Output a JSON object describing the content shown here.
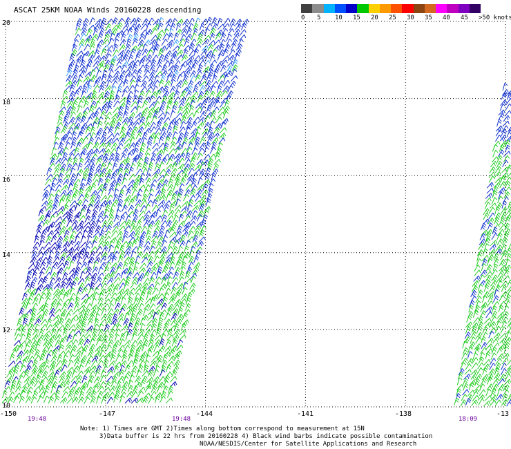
{
  "title": "ASCAT 25KM NOAA Winds 20160228 descending",
  "colorbar": {
    "colors": [
      "#404040",
      "#8c8c8c",
      "#00b3ff",
      "#0050ff",
      "#0000c8",
      "#00c800",
      "#ffd000",
      "#ff9900",
      "#ff5000",
      "#ff0000",
      "#8b4513",
      "#d2691e",
      "#ff00ff",
      "#c000c0",
      "#8000c0",
      "#330066"
    ],
    "labels": [
      "0",
      "5",
      "10",
      "15",
      "20",
      "25",
      "30",
      "35",
      "40",
      "45",
      ">50 knots"
    ]
  },
  "axes": {
    "lat_labels": [
      "20",
      "18",
      "16",
      "14",
      "12",
      "10"
    ],
    "lon_labels": [
      "-150",
      "-147",
      "-144",
      "-141",
      "-138",
      "-13"
    ]
  },
  "times": [
    "19:48",
    "19:48",
    "18:09"
  ],
  "notes": [
    "Note: 1) Times are GMT 2)Times along bottom correspond to measurement at 15N",
    "3)Data buffer is 22 hrs from 20160228 4) Black wind barbs indicate possible contamination",
    "NOAA/NESDIS/Center for Satellite Applications and Research"
  ]
}
